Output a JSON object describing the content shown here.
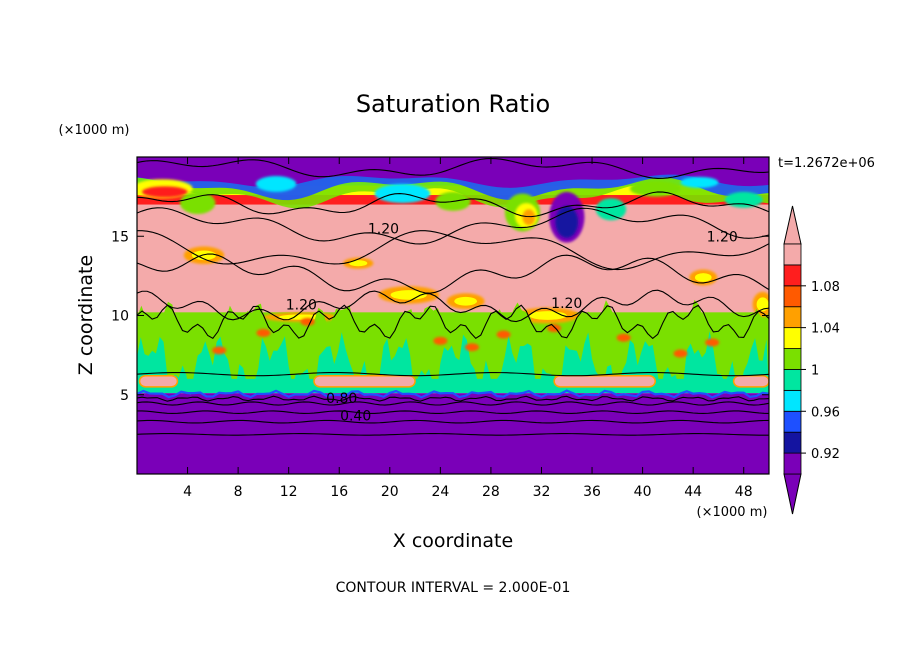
{
  "colors": {
    "purple": "#7a00b8",
    "navy": "#1414a0",
    "blue": "#1e50ff",
    "cyan": "#00e6ff",
    "teal": "#00e6a0",
    "green": "#7ae000",
    "yellow": "#ffff00",
    "orange": "#ffa000",
    "orangered": "#ff5a00",
    "red": "#ff1e1e",
    "pink": "#f4aaaa",
    "contour": "#000000"
  },
  "chart_data": {
    "type": "heatmap",
    "title": "Saturation Ratio",
    "xlabel": "X coordinate",
    "ylabel": "Z coordinate",
    "x_unit": "(×1000 m)",
    "y_unit": "(×1000 m)",
    "time_label": "t=1.2672e+06",
    "footer": "CONTOUR INTERVAL = 2.000E-01",
    "xlim": [
      0,
      50
    ],
    "ylim": [
      0,
      20
    ],
    "x_ticks": [
      4,
      8,
      12,
      16,
      20,
      24,
      28,
      32,
      36,
      40,
      44,
      48
    ],
    "y_ticks": [
      5,
      10,
      15
    ],
    "colorbar": {
      "levels": [
        0.92,
        0.94,
        0.96,
        0.98,
        1.0,
        1.02,
        1.04,
        1.06,
        1.08,
        1.1
      ],
      "tick_labels": [
        "0.92",
        "0.96",
        "1",
        "1.04",
        "1.08"
      ],
      "tick_values": [
        0.92,
        0.96,
        1.0,
        1.04,
        1.08
      ]
    },
    "contour_labels": [
      {
        "text": "1.20",
        "x": 19.5,
        "z": 15.5
      },
      {
        "text": "1.20",
        "x": 46.3,
        "z": 15.0
      },
      {
        "text": "1.20",
        "x": 13.0,
        "z": 10.7
      },
      {
        "text": "1.20",
        "x": 34.0,
        "z": 10.8
      },
      {
        "text": "0.80",
        "x": 16.2,
        "z": 4.8
      },
      {
        "text": "0.40",
        "x": 17.3,
        "z": 3.7
      }
    ]
  }
}
